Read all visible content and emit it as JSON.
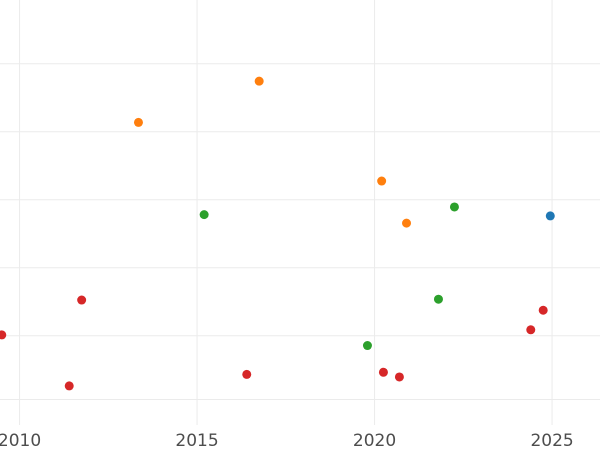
{
  "chart_data": {
    "type": "scatter",
    "title": "",
    "xlabel": "",
    "ylabel": "",
    "grid": true,
    "xlim": [
      2009.45,
      2026.35
    ],
    "x_ticks": [
      2010,
      2015,
      2020,
      2025
    ],
    "x_tick_labels": [
      "2010",
      "2015",
      "2020",
      "2025"
    ],
    "ylim": [
      0,
      100
    ],
    "y_gridlines": [
      6,
      21,
      37,
      53,
      69,
      85
    ],
    "series": [
      {
        "color": "#d62728",
        "points": [
          {
            "x": 2009.5,
            "y": 21.2
          },
          {
            "x": 2011.4,
            "y": 9.2
          },
          {
            "x": 2011.75,
            "y": 29.4
          },
          {
            "x": 2016.4,
            "y": 11.9
          },
          {
            "x": 2020.25,
            "y": 12.4
          },
          {
            "x": 2020.7,
            "y": 11.3
          },
          {
            "x": 2024.4,
            "y": 22.4
          },
          {
            "x": 2024.75,
            "y": 27.0
          }
        ]
      },
      {
        "color": "#ff7f0e",
        "points": [
          {
            "x": 2013.35,
            "y": 71.2
          },
          {
            "x": 2016.75,
            "y": 80.9
          },
          {
            "x": 2020.2,
            "y": 57.4
          },
          {
            "x": 2020.9,
            "y": 47.5
          }
        ]
      },
      {
        "color": "#2ca02c",
        "points": [
          {
            "x": 2015.2,
            "y": 49.5
          },
          {
            "x": 2019.8,
            "y": 18.7
          },
          {
            "x": 2021.8,
            "y": 29.6
          },
          {
            "x": 2022.25,
            "y": 51.3
          }
        ]
      },
      {
        "color": "#1f77b4",
        "points": [
          {
            "x": 2024.95,
            "y": 49.2
          }
        ]
      }
    ]
  }
}
